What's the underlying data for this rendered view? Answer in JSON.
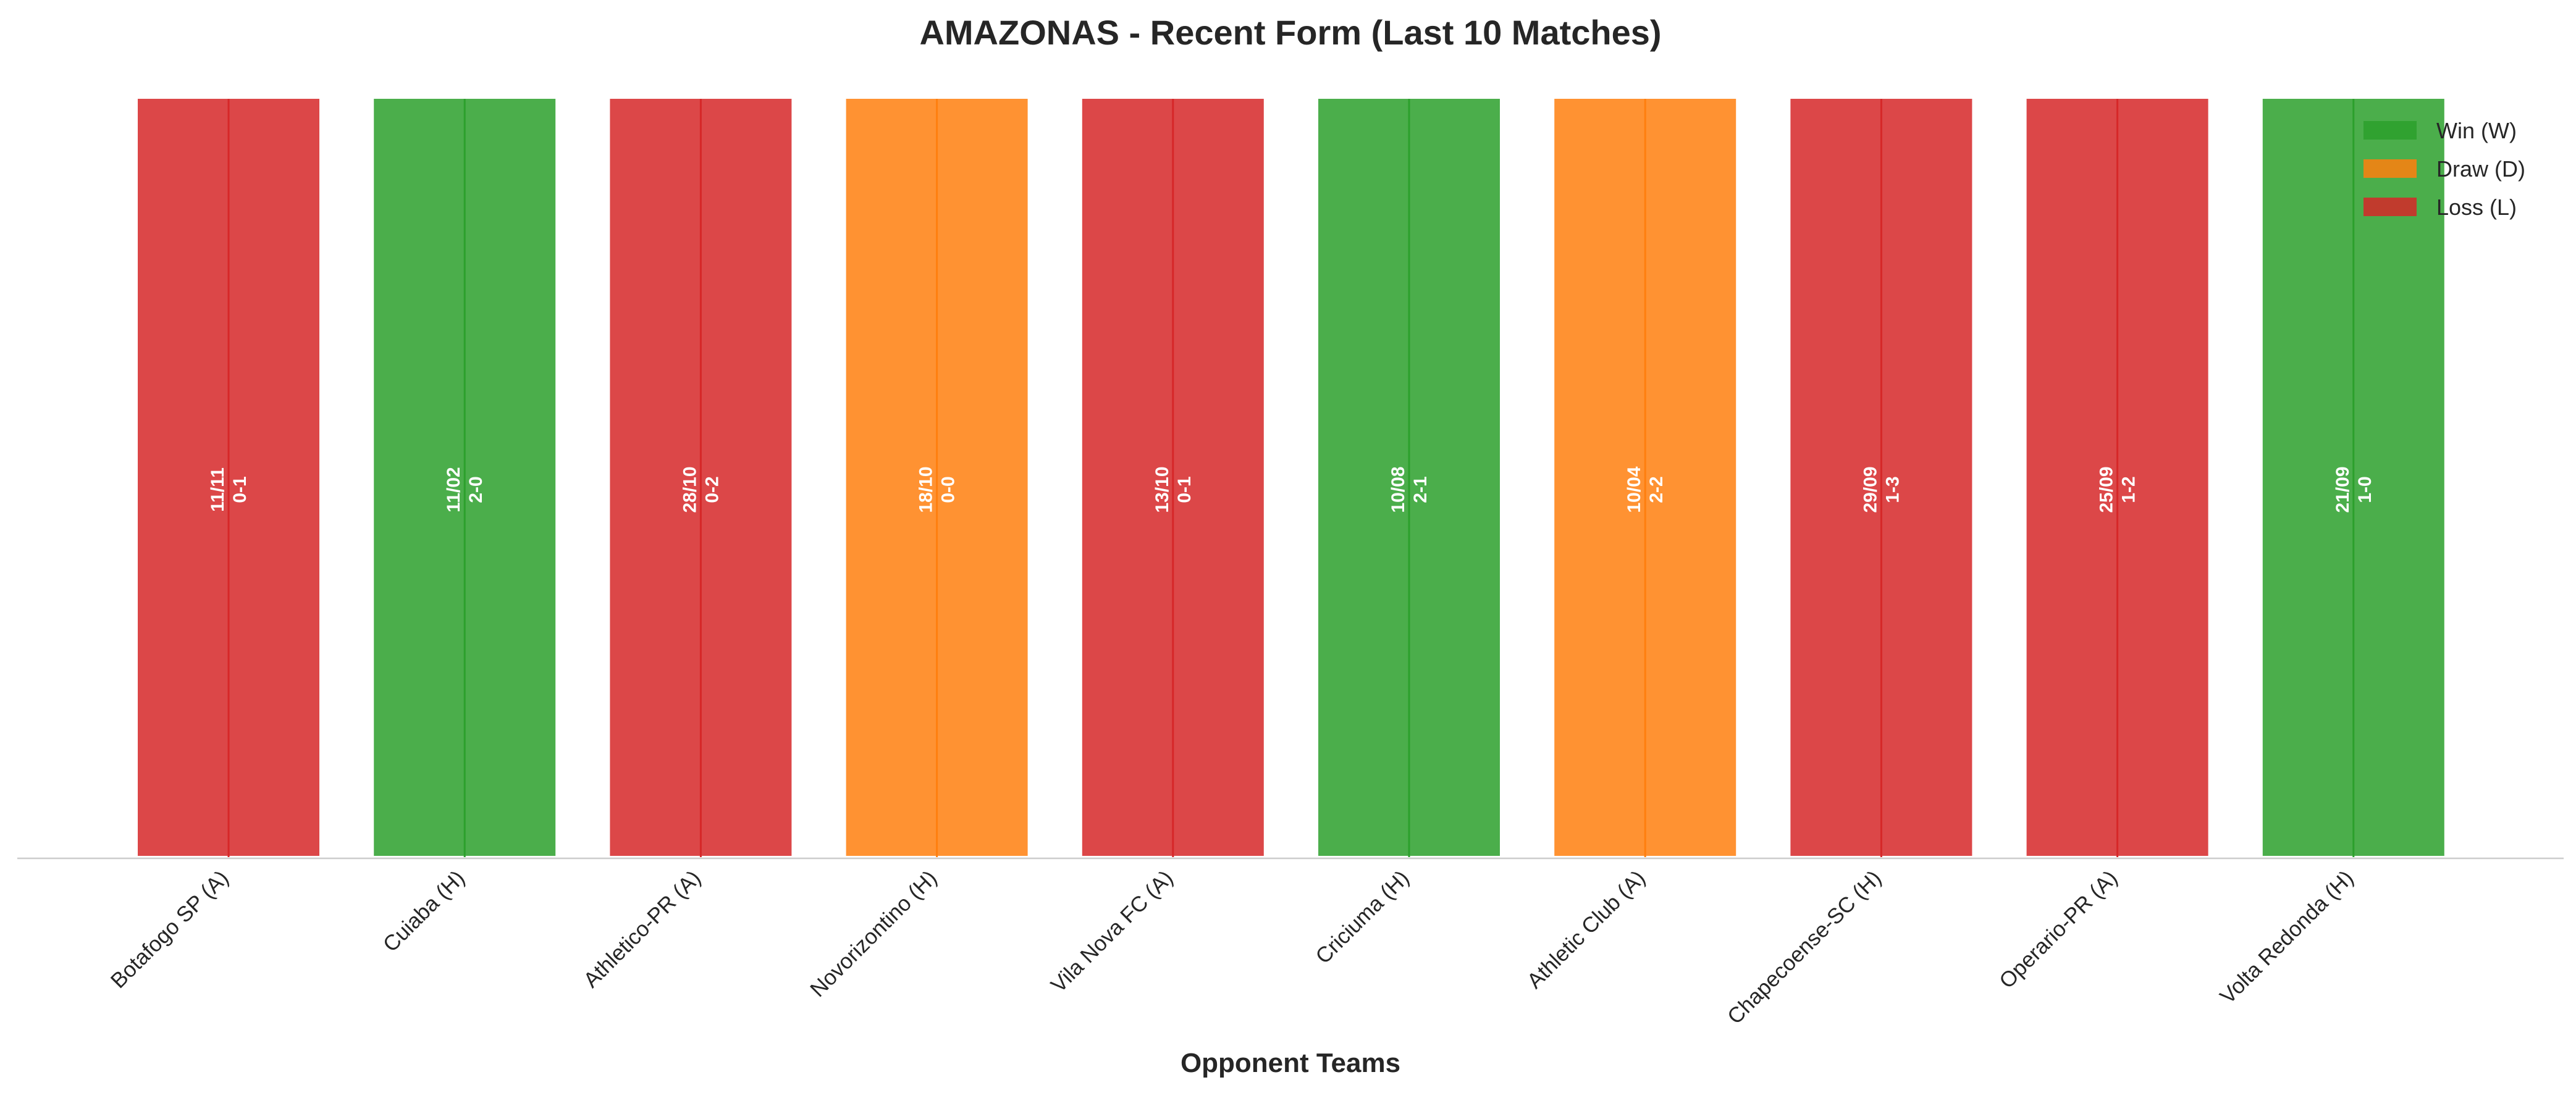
{
  "chart_data": {
    "type": "bar",
    "title": "AMAZONAS - Recent Form (Last 10 Matches)",
    "xlabel": "Opponent Teams",
    "ylabel": "",
    "ylim": [
      0,
      1
    ],
    "grid": false,
    "legend_position": "top-right",
    "categories": [
      "Botafogo SP (A)",
      "Cuiaba (H)",
      "Athletico-PR (A)",
      "Novorizontino (H)",
      "Vila Nova FC (A)",
      "Criciuma (H)",
      "Athletic Club (A)",
      "Chapecoense-SC (H)",
      "Operario-PR (A)",
      "Volta Redonda (H)"
    ],
    "values": [
      1,
      1,
      1,
      1,
      1,
      1,
      1,
      1,
      1,
      1
    ],
    "results": [
      "L",
      "W",
      "L",
      "D",
      "L",
      "W",
      "D",
      "L",
      "L",
      "W"
    ],
    "dates": [
      "11/11",
      "11/02",
      "28/10",
      "18/10",
      "13/10",
      "10/08",
      "10/04",
      "29/09",
      "25/09",
      "21/09"
    ],
    "scores": [
      "0-1",
      "2-0",
      "0-2",
      "0-0",
      "0-1",
      "2-1",
      "2-2",
      "1-3",
      "1-2",
      "1-0"
    ],
    "legend": [
      {
        "key": "W",
        "label": "Win (W)",
        "color": "#2ca02c"
      },
      {
        "key": "D",
        "label": "Draw (D)",
        "color": "#ff7f0e"
      },
      {
        "key": "L",
        "label": "Loss (L)",
        "color": "#d62728"
      }
    ]
  }
}
